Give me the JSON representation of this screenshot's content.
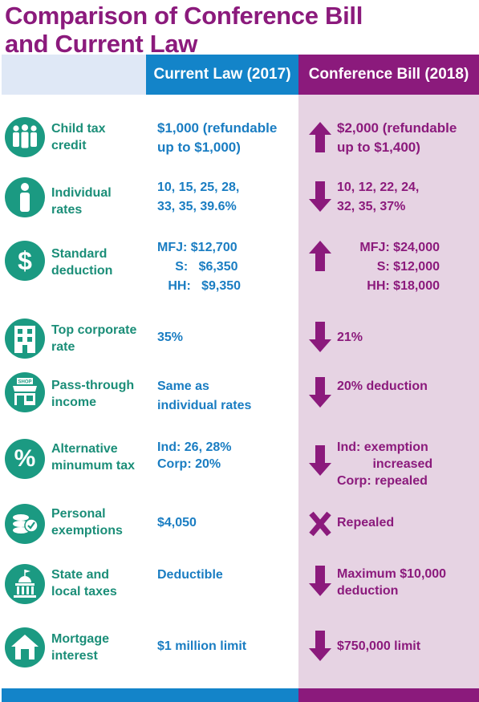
{
  "title_line1": "Comparison of Conference Bill",
  "title_line2": "and Current Law",
  "headers": {
    "current": "Current Law (2017)",
    "conference": "Conference Bill (2018)"
  },
  "colors": {
    "purple": "#8b1a7c",
    "blue": "#1384c9",
    "teal": "#1b9a82",
    "lavender": "#e6d3e3"
  },
  "rows": [
    {
      "label": "Child tax\ncredit",
      "icon": "people-icon",
      "current": "$1,000 (refundable\n up to $1,000)",
      "change": "increase",
      "conference": "$2,000 (refundable\n up to $1,400)"
    },
    {
      "label": "Individual\nrates",
      "icon": "person-icon",
      "current": "10, 15, 25, 28,\n33, 35, 39.6%",
      "change": "decrease",
      "conference": "10, 12, 22, 24,\n32, 35, 37%"
    },
    {
      "label": "Standard\ndeduction",
      "icon": "dollar-icon",
      "current": "MFJ: $12,700\n     S:   $6,350\n   HH:   $9,350",
      "change": "increase",
      "conference": "MFJ: $24,000\nS:  $12,000\nHH: $18,000"
    },
    {
      "label": "Top corporate\nrate",
      "icon": "building-icon",
      "current": "35%",
      "change": "decrease",
      "conference": "21%"
    },
    {
      "label": "Pass-through\nincome",
      "icon": "shop-icon",
      "icon_text": "SHOP",
      "current": "Same as\nindividual rates",
      "change": "decrease",
      "conference": "20% deduction"
    },
    {
      "label": "Alternative\nminumum tax",
      "icon": "percent-icon",
      "current": "Ind: 26, 28%\nCorp: 20%",
      "change": "decrease",
      "conference": "Ind: exemption\n          increased\nCorp: repealed"
    },
    {
      "label": "Personal\nexemptions",
      "icon": "coins-check-icon",
      "current": "$4,050",
      "change": "repealed",
      "conference": "Repealed"
    },
    {
      "label": "State and\nlocal taxes",
      "icon": "capitol-icon",
      "current": "Deductible",
      "change": "decrease",
      "conference": "Maximum $10,000\ndeduction"
    },
    {
      "label": "Mortgage\ninterest",
      "icon": "house-icon",
      "current": "$1 million limit",
      "change": "decrease",
      "conference": "$750,000 limit"
    }
  ]
}
